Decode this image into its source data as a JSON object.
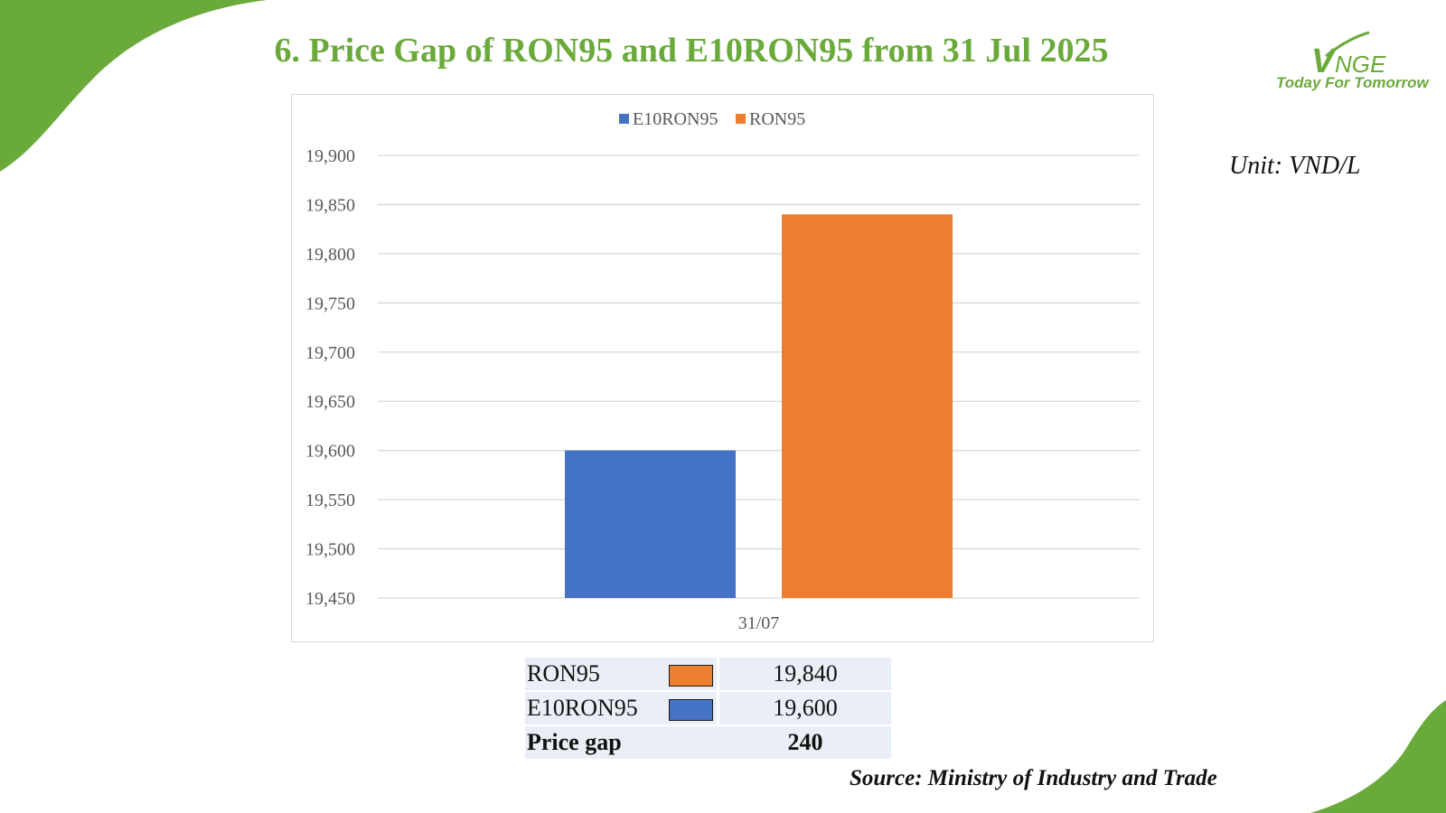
{
  "title": "6. Price Gap of RON95 and E10RON95 from 31 Jul 2025",
  "logo": {
    "name": "VNGE",
    "tagline": "Today For Tomorrow"
  },
  "unit": "Unit: VND/L",
  "colors": {
    "brand_green": "#6aaa3a",
    "ron95": "#ed7d31",
    "e10ron95": "#4472c4"
  },
  "chart_data": {
    "type": "bar",
    "categories": [
      "31/07"
    ],
    "series": [
      {
        "name": "E10RON95",
        "values": [
          19600
        ],
        "color": "#4472c4"
      },
      {
        "name": "RON95",
        "values": [
          19840
        ],
        "color": "#ed7d31"
      }
    ],
    "ylim": [
      19450,
      19900
    ],
    "yticks": [
      19450,
      19500,
      19550,
      19600,
      19650,
      19700,
      19750,
      19800,
      19850,
      19900
    ],
    "ytick_labels": [
      "19,450",
      "19,500",
      "19,550",
      "19,600",
      "19,650",
      "19,700",
      "19,750",
      "19,800",
      "19,850",
      "19,900"
    ],
    "legend_position": "top",
    "grid": true
  },
  "table": {
    "rows": [
      {
        "label": "RON95",
        "color": "#ed7d31",
        "value": "19,840"
      },
      {
        "label": "E10RON95",
        "color": "#4472c4",
        "value": "19,600"
      }
    ],
    "gap_label": "Price gap",
    "gap_value": "240"
  },
  "source": "Source: Ministry of Industry and Trade"
}
